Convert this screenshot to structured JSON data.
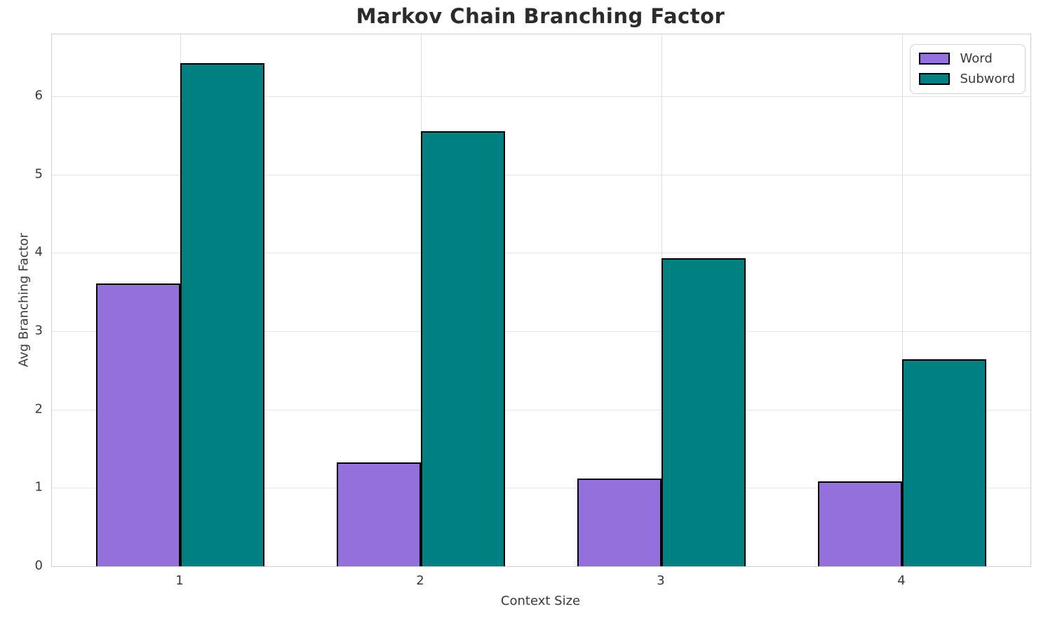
{
  "chart_data": {
    "type": "bar",
    "title": "Markov Chain Branching Factor",
    "xlabel": "Context Size",
    "ylabel": "Avg Branching Factor",
    "categories": [
      "1",
      "2",
      "3",
      "4"
    ],
    "series": [
      {
        "name": "Word",
        "color": "#9370DB",
        "values": [
          3.61,
          1.33,
          1.12,
          1.08
        ]
      },
      {
        "name": "Subword",
        "color": "#008080",
        "values": [
          6.42,
          5.55,
          3.93,
          2.64
        ]
      }
    ],
    "yticks": [
      "0",
      "1",
      "2",
      "3",
      "4",
      "5",
      "6"
    ],
    "ylim": [
      0,
      6.79
    ],
    "grid": true,
    "legend_position": "upper right",
    "bar_edge_color": "#000000",
    "background_color": "#ffffff"
  }
}
